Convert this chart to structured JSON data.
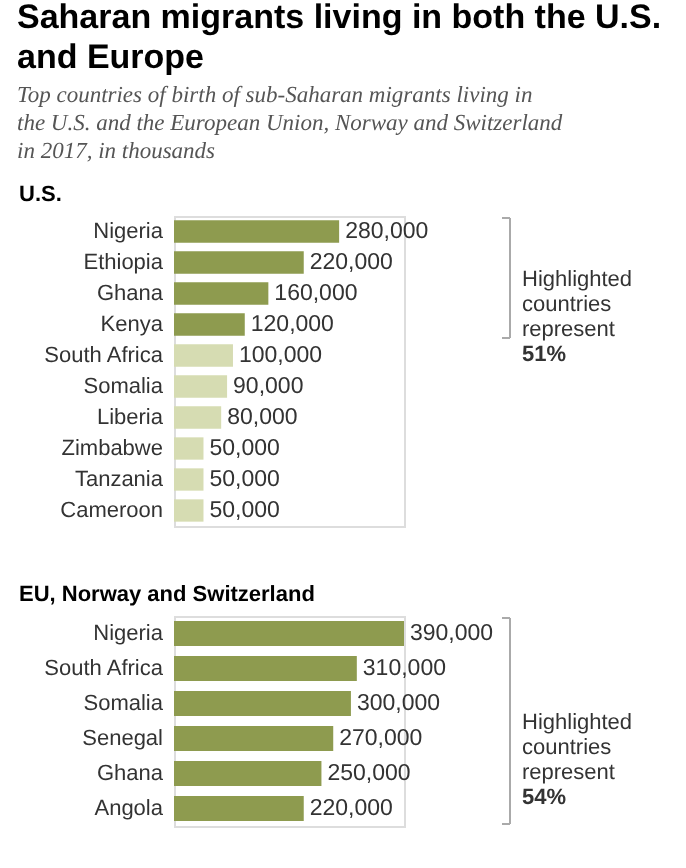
{
  "chart_data": [
    {
      "type": "bar",
      "orientation": "horizontal",
      "title": "Saharan migrants living in both the U.S. and Europe",
      "subtitle": "Top countries of birth of sub-Saharan migrants living in the U.S. and the European Union, Norway and Switzerland in 2017, in thousands",
      "ylabel": "U.S.",
      "categories": [
        "Nigeria",
        "Ethiopia",
        "Ghana",
        "Kenya",
        "South Africa",
        "Somalia",
        "Liberia",
        "Zimbabwe",
        "Tanzania",
        "Cameroon"
      ],
      "values": [
        280000,
        220000,
        160000,
        120000,
        100000,
        90000,
        80000,
        50000,
        50000,
        50000
      ],
      "colors": [
        "#8e9b4f",
        "#8e9b4f",
        "#8e9b4f",
        "#8e9b4f",
        "#d6dcb2",
        "#d6dcb2",
        "#d6dcb2",
        "#d6dcb2",
        "#d6dcb2",
        "#d6dcb2"
      ],
      "value_labels": [
        "280,000",
        "220,000",
        "160,000",
        "120,000",
        "100,000",
        "90,000",
        "80,000",
        "50,000",
        "50,000",
        "50,000"
      ],
      "annotations": [
        "Highlighted\ncountries\nrepresent\n51%"
      ]
    },
    {
      "type": "bar",
      "orientation": "horizontal",
      "ylabel": "EU, Norway and Switzerland",
      "categories": [
        "Nigeria",
        "South Africa",
        "Somalia",
        "Senegal",
        "Ghana",
        "Angola"
      ],
      "values": [
        390000,
        310000,
        300000,
        270000,
        250000,
        220000
      ],
      "colors": [
        "#8e9b4f",
        "#8e9b4f",
        "#8e9b4f",
        "#8e9b4f",
        "#8e9b4f",
        "#8e9b4f"
      ],
      "value_labels": [
        "390,000",
        "310,000",
        "300,000",
        "270,000",
        "250,000",
        "220,000"
      ],
      "annotations": [
        "Highlighted\ncountries\nrepresent\n54%"
      ]
    }
  ]
}
